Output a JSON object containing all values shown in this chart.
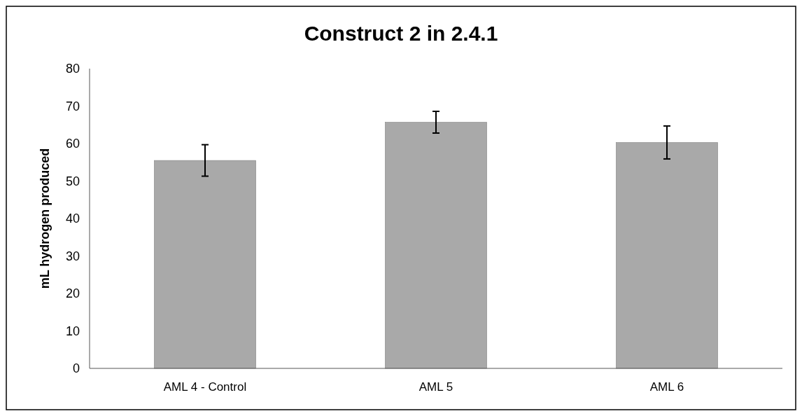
{
  "chart_data": {
    "type": "bar",
    "title": "Construct 2 in 2.4.1",
    "ylabel": "mL hydrogen produced",
    "categories": [
      "AML 4 - Control",
      "AML 5",
      "AML 6"
    ],
    "values": [
      55.5,
      65.7,
      60.3
    ],
    "errors": [
      4.2,
      2.9,
      4.4
    ],
    "color": "#a9a9a9",
    "ylim": [
      0,
      80
    ],
    "yticks": [
      0,
      10,
      20,
      30,
      40,
      50,
      60,
      70,
      80
    ]
  }
}
